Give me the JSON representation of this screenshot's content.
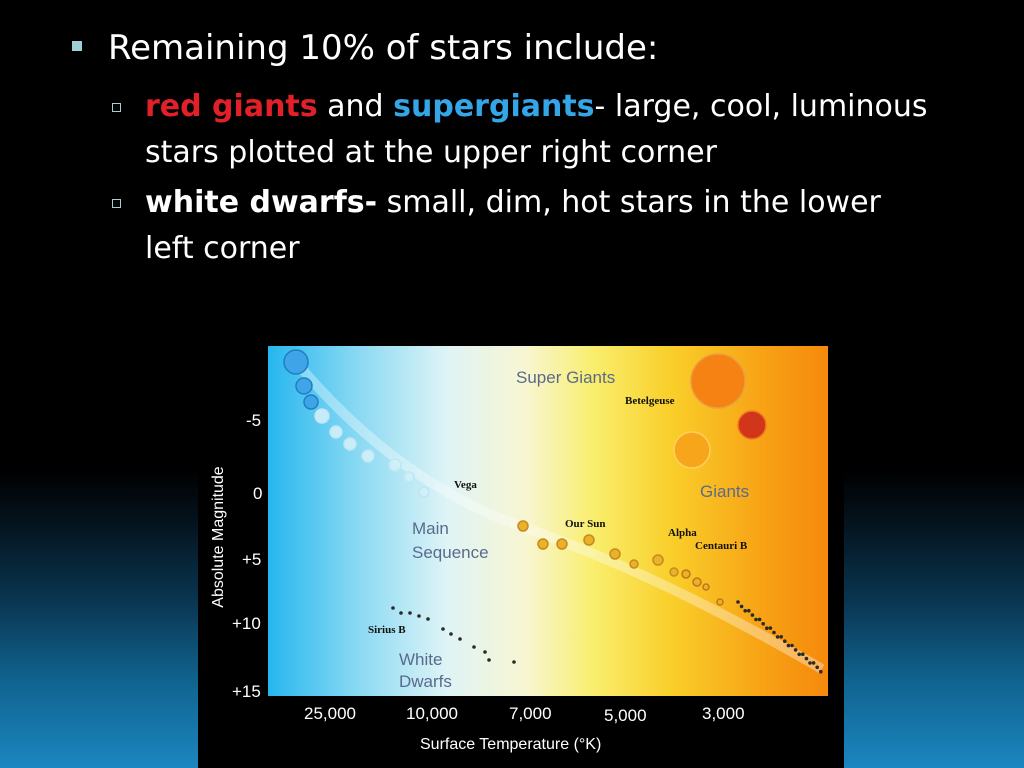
{
  "bullets": {
    "main": "Remaining 10% of stars include:",
    "sub1": {
      "red": "red giants",
      "and": " and ",
      "blue": "supergiants",
      "rest": "- large, cool, luminous stars plotted at the upper right corner"
    },
    "sub2": {
      "bold": "white dwarfs-",
      "rest": " small, dim, hot stars in the lower left corner"
    }
  },
  "chart_data": {
    "type": "scatter",
    "xlabel": "Surface Temperature (°K)",
    "ylabel": "Absolute Magnitude",
    "x_ticks": [
      "25,000",
      "10,000",
      "7,000",
      "5,000",
      "3,000"
    ],
    "y_ticks": [
      "-5",
      "0",
      "+5",
      "+10",
      "+15"
    ],
    "regions": {
      "super_giants": "Super Giants",
      "giants": "Giants",
      "main_sequence": [
        "Main",
        "Sequence"
      ],
      "white_dwarfs": [
        "White",
        "Dwarfs"
      ]
    },
    "labeled_stars": {
      "vega": "Vega",
      "our_sun": "Our Sun",
      "betelgeuse": "Betelgeuse",
      "alpha_centauri_b": [
        "Alpha",
        "Centauri B"
      ],
      "sirius_b": "Sirius B"
    },
    "colors": {
      "hot": "#3fa4e8",
      "warm": "#e9b22a",
      "cool": "#d5521a",
      "dwarf": "#2a2a2a"
    }
  }
}
